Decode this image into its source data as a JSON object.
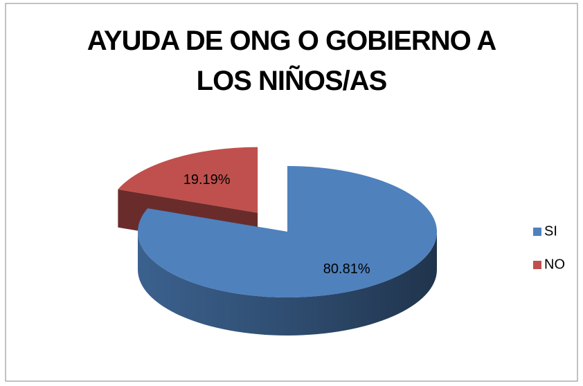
{
  "chart_data": {
    "type": "pie",
    "title": "AYUDA DE ONG O GOBIERNO A LOS NIÑOS/AS",
    "categories": [
      "SI",
      "NO"
    ],
    "values": [
      80.81,
      19.19
    ],
    "value_labels": [
      "80.81%",
      "19.19%"
    ],
    "colors": [
      "#4f81bd",
      "#c0504d"
    ],
    "legend": "right"
  }
}
